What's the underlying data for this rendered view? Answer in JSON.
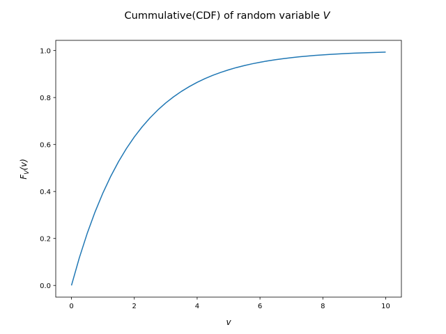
{
  "chart_data": {
    "type": "line",
    "title": {
      "prefix": "Cummulative(CDF) of random variable ",
      "var": "V"
    },
    "xlabel": "v",
    "ylabel": {
      "main": "F",
      "sub": "V",
      "arg": "(v)"
    },
    "xlim": [
      -0.5,
      10.5
    ],
    "ylim": [
      -0.0497,
      1.0434
    ],
    "xticks": [
      0,
      2,
      4,
      6,
      8,
      10
    ],
    "xtick_labels": [
      "0",
      "2",
      "4",
      "6",
      "8",
      "10"
    ],
    "yticks": [
      0.0,
      0.2,
      0.4,
      0.6,
      0.8,
      1.0
    ],
    "ytick_labels": [
      "0.0",
      "0.2",
      "0.4",
      "0.6",
      "0.8",
      "1.0"
    ],
    "grid": false,
    "series": [
      {
        "color": "#1f77b4",
        "x": [
          0,
          0.25,
          0.5,
          0.75,
          1,
          1.25,
          1.5,
          1.75,
          2,
          2.25,
          2.5,
          2.75,
          3,
          3.25,
          3.5,
          3.75,
          4,
          4.25,
          4.5,
          4.75,
          5,
          5.25,
          5.5,
          5.75,
          6,
          6.25,
          6.5,
          6.75,
          7,
          7.25,
          7.5,
          7.75,
          8,
          8.25,
          8.5,
          8.75,
          9,
          9.25,
          9.5,
          9.75,
          10
        ],
        "y": [
          0,
          0.1175,
          0.2212,
          0.3127,
          0.3935,
          0.4647,
          0.5276,
          0.5831,
          0.6321,
          0.6753,
          0.7135,
          0.7472,
          0.7769,
          0.8031,
          0.8262,
          0.8466,
          0.8647,
          0.8806,
          0.8946,
          0.907,
          0.9179,
          0.9276,
          0.9361,
          0.9436,
          0.9502,
          0.9561,
          0.9612,
          0.9658,
          0.9698,
          0.9734,
          0.9765,
          0.9793,
          0.9817,
          0.9838,
          0.9857,
          0.9874,
          0.9889,
          0.9902,
          0.9913,
          0.9924,
          0.9933
        ]
      }
    ]
  }
}
